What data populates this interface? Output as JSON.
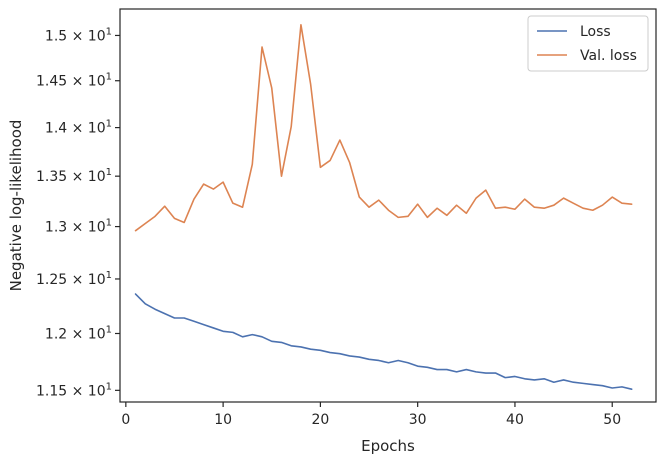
{
  "chart_data": {
    "type": "line",
    "xlabel": "Epochs",
    "ylabel": "Negative log-likelihood",
    "xlim": [
      -0.6,
      54.5
    ],
    "ylim": [
      11.4,
      15.3
    ],
    "y_scale": "log",
    "grid": false,
    "legend_position": "top-right",
    "x_ticks": [
      0,
      10,
      20,
      30,
      40,
      50
    ],
    "y_ticks": [
      {
        "value": 11.5,
        "mantissa": "1.15",
        "base": "10",
        "exp": "1"
      },
      {
        "value": 12.0,
        "mantissa": "1.2",
        "base": "10",
        "exp": "1"
      },
      {
        "value": 12.5,
        "mantissa": "1.25",
        "base": "10",
        "exp": "1"
      },
      {
        "value": 13.0,
        "mantissa": "1.3",
        "base": "10",
        "exp": "1"
      },
      {
        "value": 13.5,
        "mantissa": "1.35",
        "base": "10",
        "exp": "1"
      },
      {
        "value": 14.0,
        "mantissa": "1.4",
        "base": "10",
        "exp": "1"
      },
      {
        "value": 14.5,
        "mantissa": "1.45",
        "base": "10",
        "exp": "1"
      },
      {
        "value": 15.0,
        "mantissa": "1.5",
        "base": "10",
        "exp": "1"
      }
    ],
    "x": [
      1,
      2,
      3,
      4,
      5,
      6,
      7,
      8,
      9,
      10,
      11,
      12,
      13,
      14,
      15,
      16,
      17,
      18,
      19,
      20,
      21,
      22,
      23,
      24,
      25,
      26,
      27,
      28,
      29,
      30,
      31,
      32,
      33,
      34,
      35,
      36,
      37,
      38,
      39,
      40,
      41,
      42,
      43,
      44,
      45,
      46,
      47,
      48,
      49,
      50,
      51,
      52
    ],
    "series": [
      {
        "name": "Loss",
        "color": "#4c72b0",
        "values": [
          12.36,
          12.27,
          12.22,
          12.18,
          12.14,
          12.14,
          12.11,
          12.08,
          12.05,
          12.02,
          12.01,
          11.97,
          11.99,
          11.97,
          11.93,
          11.92,
          11.89,
          11.88,
          11.86,
          11.85,
          11.83,
          11.82,
          11.8,
          11.79,
          11.77,
          11.76,
          11.74,
          11.76,
          11.74,
          11.71,
          11.7,
          11.68,
          11.68,
          11.66,
          11.68,
          11.66,
          11.65,
          11.65,
          11.61,
          11.62,
          11.6,
          11.59,
          11.6,
          11.57,
          11.59,
          11.57,
          11.56,
          11.55,
          11.54,
          11.52,
          11.53,
          11.51
        ]
      },
      {
        "name": "Val. loss",
        "color": "#dd8452",
        "values": [
          12.96,
          13.03,
          13.1,
          13.2,
          13.08,
          13.04,
          13.27,
          13.42,
          13.37,
          13.44,
          13.23,
          13.19,
          13.62,
          14.87,
          14.42,
          13.5,
          14.01,
          15.12,
          14.46,
          13.59,
          13.66,
          13.87,
          13.64,
          13.29,
          13.19,
          13.26,
          13.16,
          13.09,
          13.1,
          13.22,
          13.09,
          13.18,
          13.11,
          13.21,
          13.13,
          13.28,
          13.36,
          13.18,
          13.19,
          13.17,
          13.27,
          13.19,
          13.18,
          13.21,
          13.28,
          13.23,
          13.18,
          13.16,
          13.21,
          13.29,
          13.23,
          13.22
        ]
      }
    ]
  }
}
